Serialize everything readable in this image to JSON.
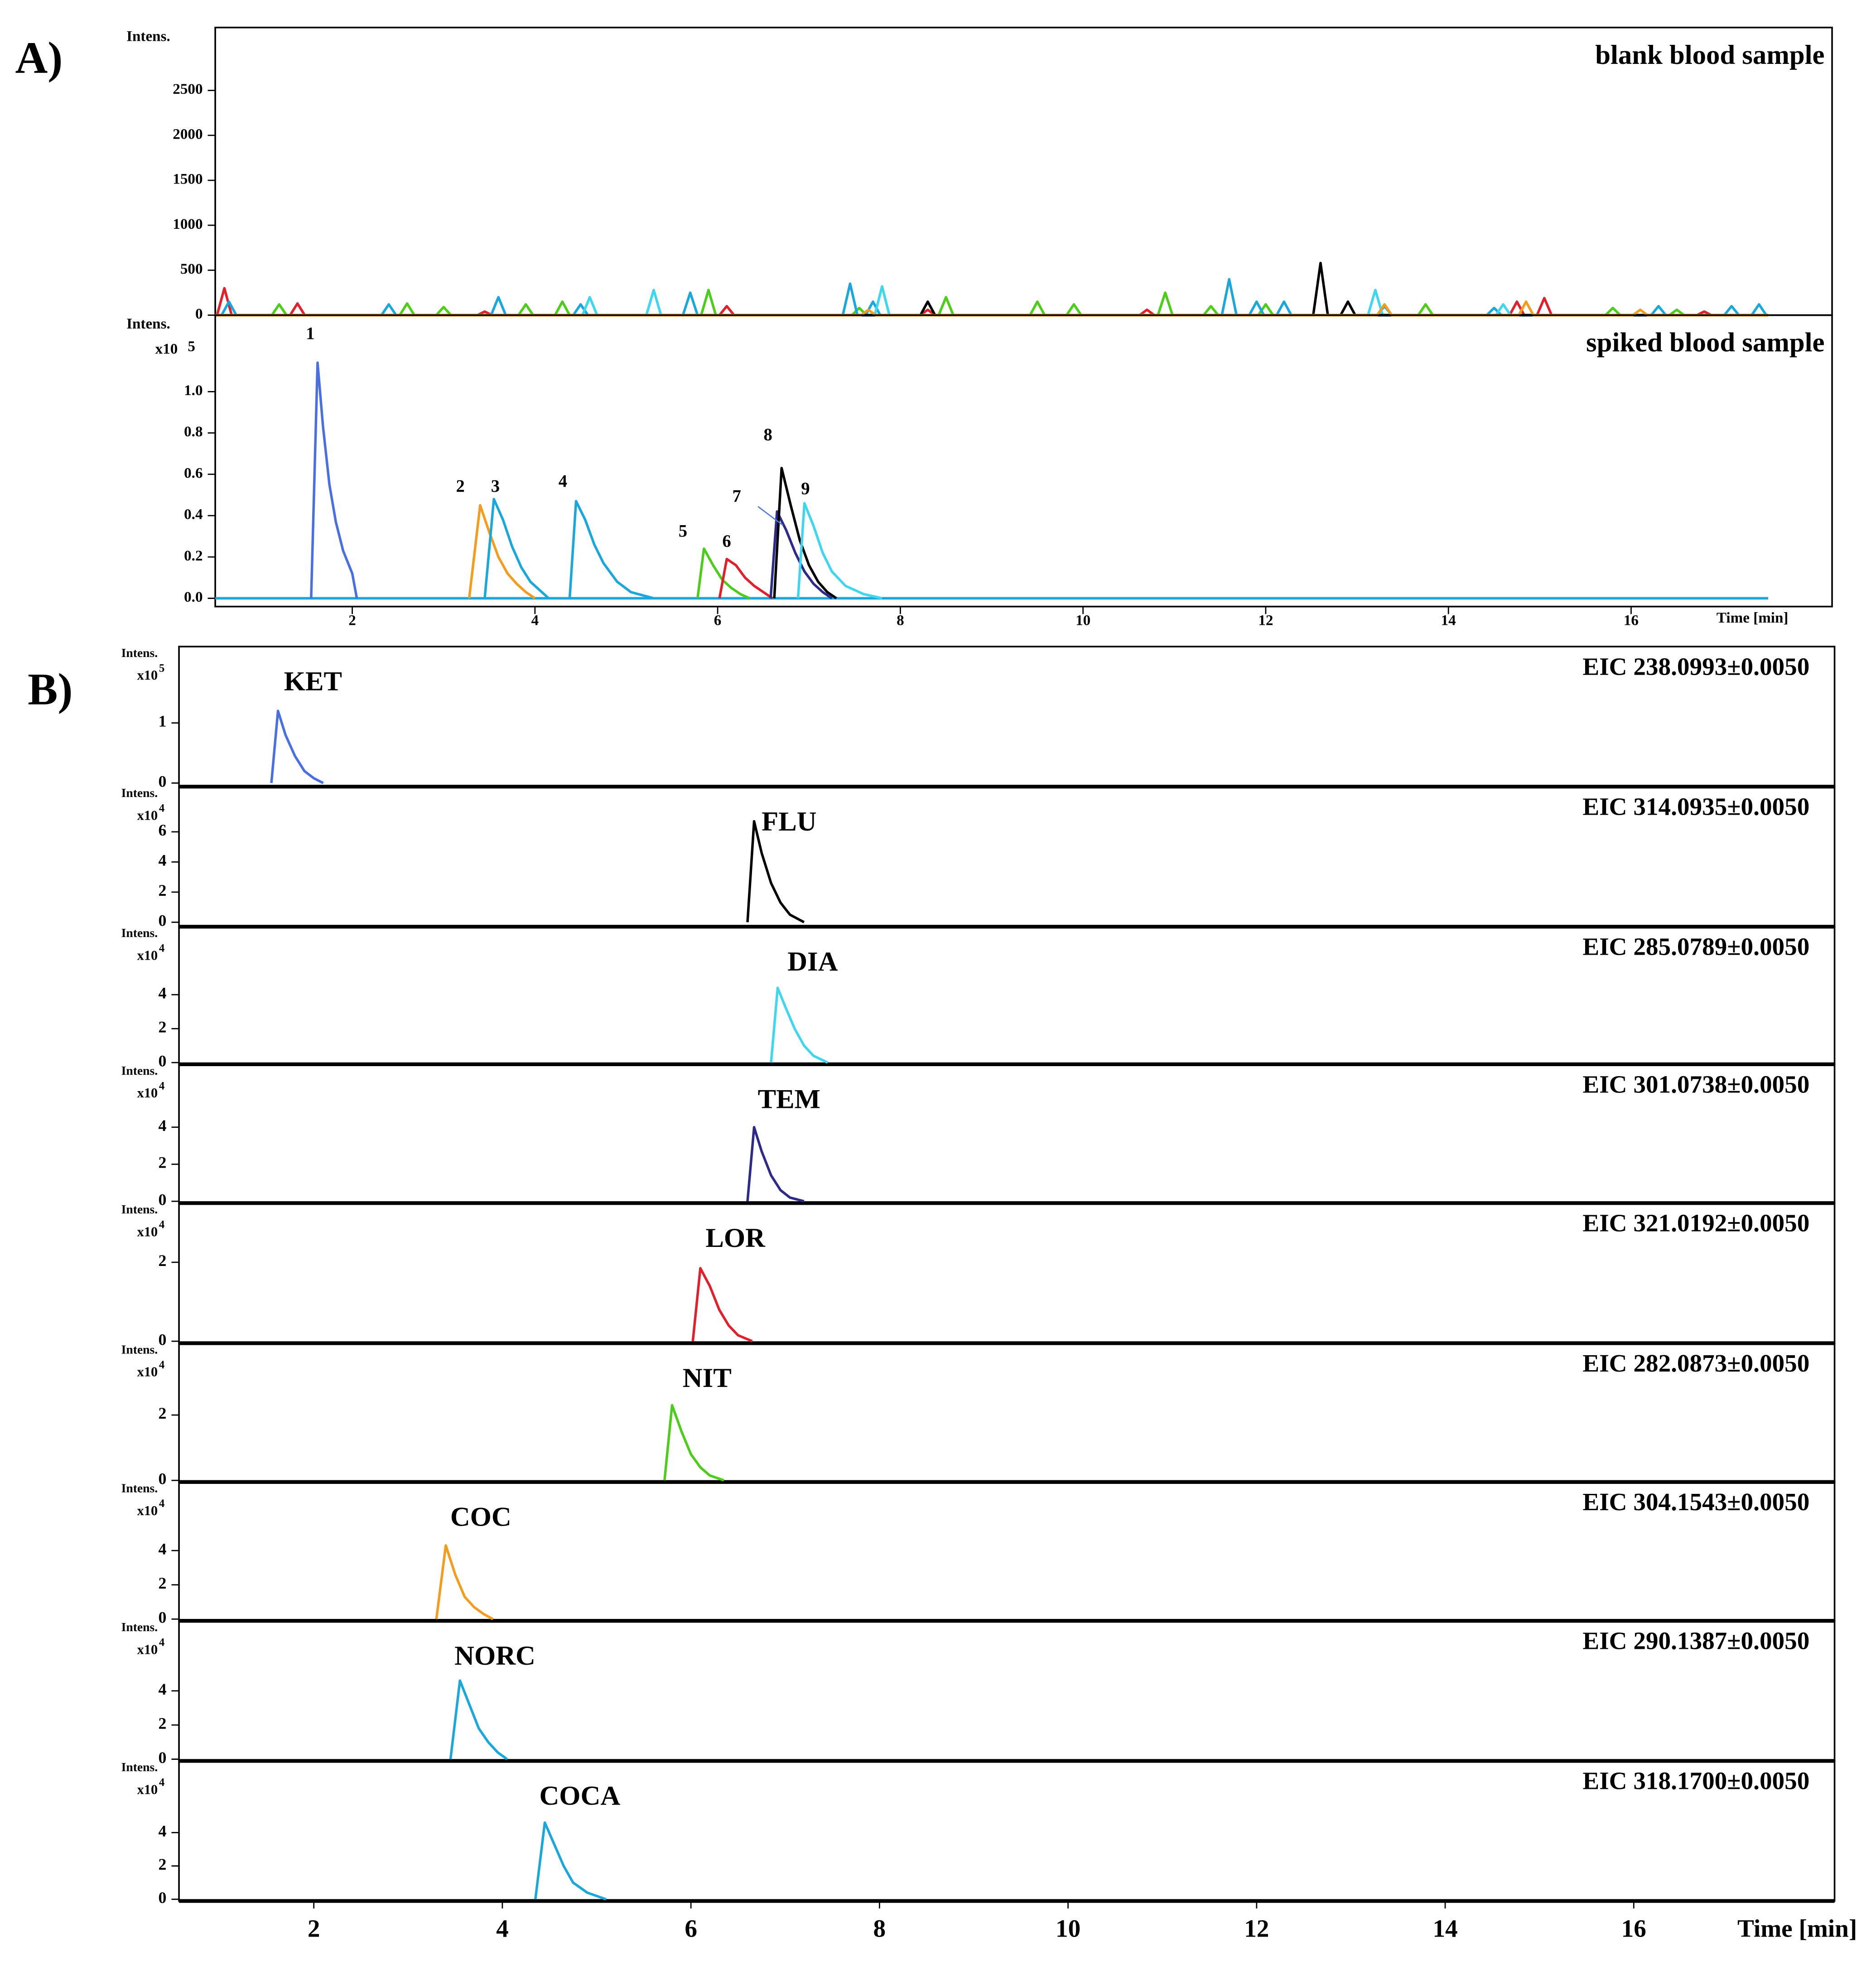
{
  "chart_data": [
    {
      "type": "line",
      "panel_label": "A)",
      "title": "blank blood sample",
      "ylabel": "Intens.",
      "xlim": [
        0.5,
        18.2
      ],
      "ylim": [
        0,
        3200
      ],
      "yticks": [
        0,
        500,
        1000,
        1500,
        2000,
        2500
      ],
      "series": [
        {
          "color": "#e0202a",
          "x": [
            0.5,
            0.52,
            0.6,
            0.68,
            1.32,
            1.4,
            1.48,
            3.37,
            3.45,
            3.53,
            6.02,
            6.1,
            6.18,
            8.22,
            8.3,
            8.38,
            10.62,
            10.7,
            10.78,
            14.67,
            14.75,
            14.83,
            14.97,
            15.05,
            15.13,
            16.72,
            16.8,
            16.88,
            17.5
          ],
          "values": [
            0,
            0,
            300,
            0,
            0,
            130,
            0,
            0,
            40,
            0,
            0,
            100,
            0,
            0,
            60,
            0,
            0,
            60,
            0,
            0,
            150,
            0,
            0,
            190,
            0,
            0,
            40,
            0,
            0
          ]
        },
        {
          "color": "#4ccd1a",
          "x": [
            0.5,
            1.12,
            1.2,
            1.28,
            2.52,
            2.6,
            2.68,
            2.92,
            3.0,
            3.08,
            3.82,
            3.9,
            3.98,
            4.22,
            4.3,
            4.38,
            5.82,
            5.9,
            5.98,
            7.47,
            7.55,
            7.63,
            8.42,
            8.5,
            8.58,
            9.42,
            9.5,
            9.58,
            9.82,
            9.9,
            9.98,
            10.82,
            10.9,
            10.98,
            11.32,
            11.4,
            11.48,
            11.92,
            12.0,
            12.08,
            13.67,
            13.75,
            13.83,
            15.72,
            15.8,
            15.88,
            16.42,
            16.5,
            16.58,
            17.5
          ],
          "values": [
            0,
            0,
            120,
            0,
            0,
            130,
            0,
            0,
            90,
            0,
            0,
            120,
            0,
            0,
            150,
            0,
            0,
            280,
            0,
            0,
            80,
            0,
            0,
            200,
            0,
            0,
            150,
            0,
            0,
            120,
            0,
            0,
            250,
            0,
            0,
            100,
            0,
            0,
            120,
            0,
            0,
            120,
            0,
            0,
            80,
            0,
            0,
            60,
            0,
            0
          ]
        },
        {
          "color": "#1aa7dc",
          "x": [
            0.5,
            0.57,
            0.65,
            0.73,
            2.32,
            2.4,
            2.48,
            3.52,
            3.6,
            3.68,
            4.42,
            4.5,
            4.58,
            5.62,
            5.7,
            5.78,
            7.37,
            7.45,
            7.53,
            7.62,
            7.7,
            7.78,
            11.52,
            11.6,
            11.68,
            11.82,
            11.9,
            11.98,
            12.12,
            12.2,
            12.28,
            13.22,
            13.3,
            13.38,
            14.42,
            14.5,
            14.58,
            16.22,
            16.3,
            16.38,
            17.02,
            17.1,
            17.18,
            17.32,
            17.4,
            17.48,
            17.5
          ],
          "values": [
            0,
            0,
            150,
            0,
            0,
            120,
            0,
            0,
            200,
            0,
            0,
            120,
            0,
            0,
            250,
            0,
            0,
            350,
            0,
            0,
            150,
            0,
            0,
            400,
            0,
            0,
            150,
            0,
            0,
            150,
            0,
            0,
            100,
            0,
            0,
            80,
            0,
            0,
            100,
            0,
            0,
            100,
            0,
            0,
            120,
            0,
            0
          ]
        },
        {
          "color": "#3fd6f0",
          "x": [
            0.5,
            4.52,
            4.6,
            4.68,
            5.22,
            5.3,
            5.38,
            7.72,
            7.8,
            7.88,
            13.12,
            13.2,
            13.28,
            14.52,
            14.6,
            14.68,
            17.5
          ],
          "values": [
            0,
            0,
            200,
            0,
            0,
            280,
            0,
            0,
            320,
            0,
            0,
            280,
            0,
            0,
            120,
            0,
            0
          ]
        },
        {
          "color": "#000000",
          "x": [
            0.5,
            8.22,
            8.3,
            8.38,
            12.52,
            12.6,
            12.68,
            12.82,
            12.9,
            12.98,
            17.5
          ],
          "values": [
            0,
            0,
            150,
            0,
            0,
            580,
            0,
            0,
            150,
            0,
            0
          ]
        },
        {
          "color": "#f39c1d",
          "x": [
            0.5,
            7.57,
            7.65,
            7.73,
            13.22,
            13.3,
            13.38,
            14.77,
            14.85,
            14.93,
            16.02,
            16.1,
            16.18,
            17.5
          ],
          "values": [
            0,
            0,
            60,
            0,
            0,
            120,
            0,
            0,
            150,
            0,
            0,
            60,
            0,
            0
          ]
        }
      ]
    },
    {
      "type": "line",
      "title": "spiked blood sample",
      "ylabel": "Intens.",
      "y_multiplier": "x10",
      "y_exponent": "5",
      "xlabel": "Time [min]",
      "xlim": [
        0.5,
        18.2
      ],
      "ylim": [
        -0.04,
        1.37
      ],
      "xticks": [
        2,
        4,
        6,
        8,
        10,
        12,
        14,
        16
      ],
      "yticks": [
        {
          "value": 0,
          "label": "0.0"
        },
        {
          "value": 0.2,
          "label": "0.2"
        },
        {
          "value": 0.4,
          "label": "0.4"
        },
        {
          "value": 0.6,
          "label": "0.6"
        },
        {
          "value": 0.8,
          "label": "0.8"
        },
        {
          "value": 1,
          "label": "1.0"
        }
      ],
      "annotations": [
        "1",
        "2",
        "3",
        "4",
        "5",
        "6",
        "7",
        "8",
        "9"
      ],
      "series": [
        {
          "color": "#1aa7dc",
          "x": [
            0.5,
            17.5
          ],
          "values": [
            0,
            0
          ]
        },
        {
          "color": "#4a6fe0",
          "x": [
            1.55,
            1.62,
            1.68,
            1.75,
            1.82,
            1.9,
            2.0,
            2.05
          ],
          "values": [
            0,
            1.14,
            0.83,
            0.55,
            0.37,
            0.23,
            0.12,
            0
          ]
        },
        {
          "color": "#f39c1d",
          "x": [
            3.28,
            3.4,
            3.5,
            3.6,
            3.7,
            3.8,
            3.9,
            4.0
          ],
          "values": [
            0,
            0.45,
            0.32,
            0.2,
            0.12,
            0.07,
            0.03,
            0
          ]
        },
        {
          "color": "#1aa7dc",
          "x": [
            3.45,
            3.55,
            3.65,
            3.75,
            3.85,
            3.95,
            4.05,
            4.15
          ],
          "values": [
            0,
            0.48,
            0.38,
            0.25,
            0.15,
            0.08,
            0.04,
            0
          ]
        },
        {
          "color": "#1aa7dc",
          "x": [
            4.38,
            4.45,
            4.55,
            4.65,
            4.75,
            4.9,
            5.05,
            5.3
          ],
          "values": [
            0,
            0.47,
            0.38,
            0.26,
            0.17,
            0.08,
            0.03,
            0
          ]
        },
        {
          "color": "#4ccd1a",
          "x": [
            5.78,
            5.85,
            5.95,
            6.05,
            6.15,
            6.25,
            6.35
          ],
          "values": [
            0,
            0.24,
            0.16,
            0.09,
            0.05,
            0.02,
            0
          ]
        },
        {
          "color": "#e0202a",
          "x": [
            6.02,
            6.1,
            6.2,
            6.3,
            6.4,
            6.5,
            6.6
          ],
          "values": [
            0,
            0.19,
            0.16,
            0.1,
            0.06,
            0.03,
            0
          ]
        },
        {
          "color": "#2d2a8a",
          "x": [
            6.58,
            6.65,
            6.75,
            6.85,
            6.95,
            7.05,
            7.15,
            7.25
          ],
          "values": [
            0,
            0.42,
            0.33,
            0.22,
            0.13,
            0.07,
            0.03,
            0
          ]
        },
        {
          "color": "#000000",
          "x": [
            6.62,
            6.7,
            6.8,
            6.9,
            7.0,
            7.1,
            7.2,
            7.3
          ],
          "values": [
            0,
            0.63,
            0.45,
            0.28,
            0.16,
            0.08,
            0.03,
            0
          ]
        },
        {
          "color": "#3fd6f0",
          "x": [
            6.88,
            6.95,
            7.05,
            7.15,
            7.25,
            7.4,
            7.6,
            7.8
          ],
          "values": [
            0,
            0.46,
            0.35,
            0.22,
            0.13,
            0.06,
            0.02,
            0
          ]
        }
      ]
    },
    {
      "type": "line",
      "panel_label": "B)",
      "title": "EIC 238.0993±0.0050",
      "label": "KET",
      "ylabel": "Intens.",
      "y_multiplier": "x10",
      "y_exponent": "5",
      "xlim": [
        0.57,
        18.13
      ],
      "ylim": [
        -0.06,
        2.27
      ],
      "yticks": [
        0,
        1
      ],
      "series": [
        {
          "color": "#4a6fe0",
          "x": [
            1.55,
            1.62,
            1.7,
            1.8,
            1.9,
            2.0,
            2.1
          ],
          "values": [
            0,
            1.2,
            0.8,
            0.45,
            0.2,
            0.08,
            0
          ]
        }
      ]
    },
    {
      "type": "line",
      "title": "EIC 314.0935±0.0050",
      "label": "FLU",
      "ylabel": "Intens.",
      "y_multiplier": "x10",
      "y_exponent": "4",
      "xlim": [
        0.57,
        18.13
      ],
      "ylim": [
        -0.3,
        9.0
      ],
      "yticks": [
        0,
        2,
        4,
        6
      ],
      "series": [
        {
          "color": "#000000",
          "x": [
            6.6,
            6.67,
            6.75,
            6.85,
            6.95,
            7.05,
            7.2
          ],
          "values": [
            0,
            6.7,
            4.6,
            2.6,
            1.3,
            0.5,
            0
          ]
        }
      ]
    },
    {
      "type": "line",
      "title": "EIC 285.0789±0.0050",
      "label": "DIA",
      "ylabel": "Intens.",
      "y_multiplier": "x10",
      "y_exponent": "4",
      "xlim": [
        0.57,
        18.13
      ],
      "ylim": [
        -0.1,
        8.0
      ],
      "yticks": [
        0,
        2,
        4
      ],
      "series": [
        {
          "color": "#3fd6f0",
          "x": [
            6.85,
            6.92,
            7.0,
            7.1,
            7.2,
            7.3,
            7.45
          ],
          "values": [
            0,
            4.4,
            3.3,
            2.0,
            1.0,
            0.4,
            0
          ]
        }
      ]
    },
    {
      "type": "line",
      "title": "EIC 301.0738±0.0050",
      "label": "TEM",
      "ylabel": "Intens.",
      "y_multiplier": "x10",
      "y_exponent": "4",
      "xlim": [
        0.57,
        18.13
      ],
      "ylim": [
        -0.1,
        7.4
      ],
      "yticks": [
        0,
        2,
        4
      ],
      "series": [
        {
          "color": "#2d2a8a",
          "x": [
            6.6,
            6.67,
            6.75,
            6.85,
            6.95,
            7.05,
            7.2
          ],
          "values": [
            0,
            4.0,
            2.7,
            1.4,
            0.6,
            0.2,
            0
          ]
        }
      ]
    },
    {
      "type": "line",
      "title": "EIC 321.0192±0.0050",
      "label": "LOR",
      "ylabel": "Intens.",
      "y_multiplier": "x10",
      "y_exponent": "4",
      "xlim": [
        0.57,
        18.13
      ],
      "ylim": [
        -0.05,
        3.5
      ],
      "yticks": [
        0,
        2
      ],
      "series": [
        {
          "color": "#e0202a",
          "x": [
            6.02,
            6.1,
            6.2,
            6.3,
            6.4,
            6.5,
            6.65
          ],
          "values": [
            0,
            1.85,
            1.4,
            0.8,
            0.4,
            0.15,
            0
          ]
        }
      ]
    },
    {
      "type": "line",
      "title": "EIC 282.0873±0.0050",
      "label": "NIT",
      "ylabel": "Intens.",
      "y_multiplier": "x10",
      "y_exponent": "4",
      "xlim": [
        0.57,
        18.13
      ],
      "ylim": [
        -0.05,
        4.2
      ],
      "yticks": [
        0,
        2
      ],
      "series": [
        {
          "color": "#4ccd1a",
          "x": [
            5.72,
            5.8,
            5.9,
            6.0,
            6.1,
            6.2,
            6.35
          ],
          "values": [
            0,
            2.3,
            1.5,
            0.8,
            0.4,
            0.15,
            0
          ]
        }
      ]
    },
    {
      "type": "line",
      "title": "EIC 304.1543±0.0050",
      "label": "COC",
      "ylabel": "Intens.",
      "y_multiplier": "x10",
      "y_exponent": "4",
      "xlim": [
        0.57,
        18.13
      ],
      "ylim": [
        -0.1,
        8.0
      ],
      "yticks": [
        0,
        2,
        4
      ],
      "series": [
        {
          "color": "#f39c1d",
          "x": [
            3.3,
            3.4,
            3.5,
            3.6,
            3.7,
            3.8,
            3.9
          ],
          "values": [
            0,
            4.3,
            2.6,
            1.3,
            0.7,
            0.3,
            0
          ]
        }
      ]
    },
    {
      "type": "line",
      "title": "EIC 290.1387±0.0050",
      "label": "NORC",
      "ylabel": "Intens.",
      "y_multiplier": "x10",
      "y_exponent": "4",
      "xlim": [
        0.57,
        18.13
      ],
      "ylim": [
        -0.1,
        8.1
      ],
      "yticks": [
        0,
        2,
        4
      ],
      "series": [
        {
          "color": "#1aa7dc",
          "x": [
            3.45,
            3.55,
            3.65,
            3.75,
            3.85,
            3.95,
            4.05
          ],
          "values": [
            0,
            4.6,
            3.2,
            1.8,
            1.0,
            0.4,
            0
          ]
        }
      ]
    },
    {
      "type": "line",
      "title": "EIC 318.1700±0.0050",
      "label": "COCA",
      "ylabel": "Intens.",
      "y_multiplier": "x10",
      "y_exponent": "4",
      "xlabel": "Time [min]",
      "xlim": [
        0.57,
        18.13
      ],
      "ylim": [
        -0.1,
        8.3
      ],
      "yticks": [
        0,
        2,
        4
      ],
      "xticks": [
        2,
        4,
        6,
        8,
        10,
        12,
        14,
        16
      ],
      "series": [
        {
          "color": "#1aa7dc",
          "x": [
            4.35,
            4.45,
            4.55,
            4.65,
            4.75,
            4.9,
            5.1
          ],
          "values": [
            0,
            4.6,
            3.3,
            2.0,
            1.0,
            0.4,
            0
          ]
        }
      ]
    }
  ]
}
